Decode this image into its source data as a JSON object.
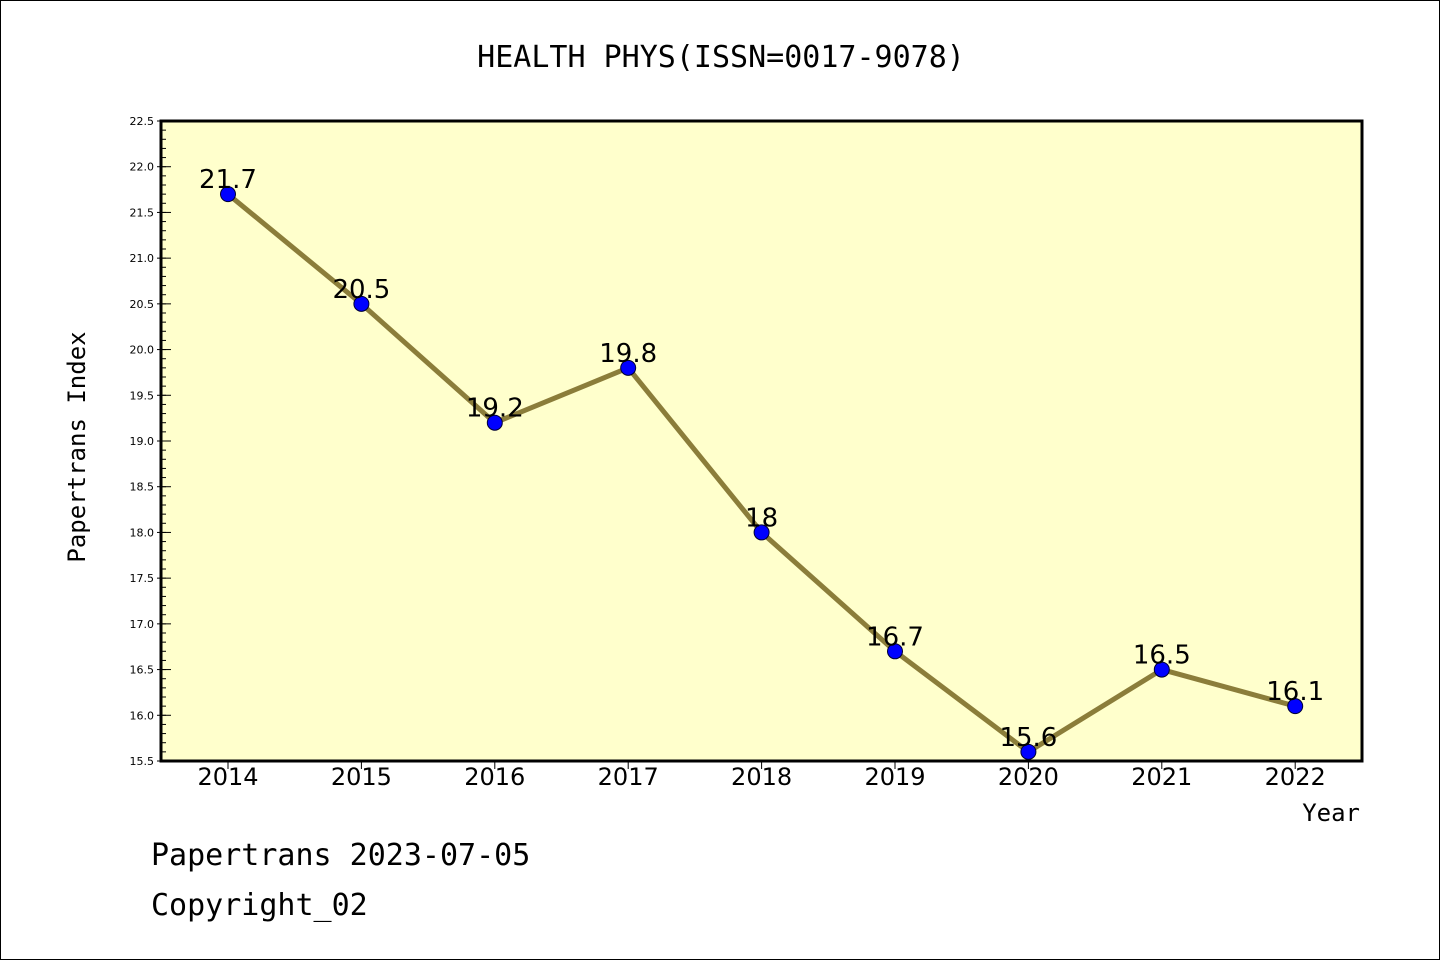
{
  "chart_data": {
    "type": "line",
    "title": "HEALTH PHYS(ISSN=0017-9078)",
    "xlabel": "Year",
    "ylabel": "Papertrans Index",
    "categories": [
      "2014",
      "2015",
      "2016",
      "2017",
      "2018",
      "2019",
      "2020",
      "2021",
      "2022"
    ],
    "series": [
      {
        "values": [
          21.7,
          20.5,
          19.2,
          19.8,
          18,
          16.7,
          15.6,
          16.5,
          16.1
        ],
        "labels": [
          "21.7",
          "20.5",
          "19.2",
          "19.8",
          "18",
          "16.7",
          "15.6",
          "16.5",
          "16.1"
        ]
      }
    ],
    "ylim": [
      15.5,
      22.5
    ],
    "yticks": [
      "15.5",
      "16.0",
      "16.5",
      "17.0",
      "17.5",
      "18.0",
      "18.5",
      "19.0",
      "19.5",
      "20.0",
      "20.5",
      "21.0",
      "21.5",
      "22.0",
      "22.5"
    ],
    "grid": false,
    "colors": {
      "plot_background": "#ffffcc",
      "line": "#8b7d3a",
      "marker": "#0000ff"
    }
  },
  "footer": {
    "line1": "Papertrans 2023-07-05",
    "line2": "Copyright_02"
  }
}
